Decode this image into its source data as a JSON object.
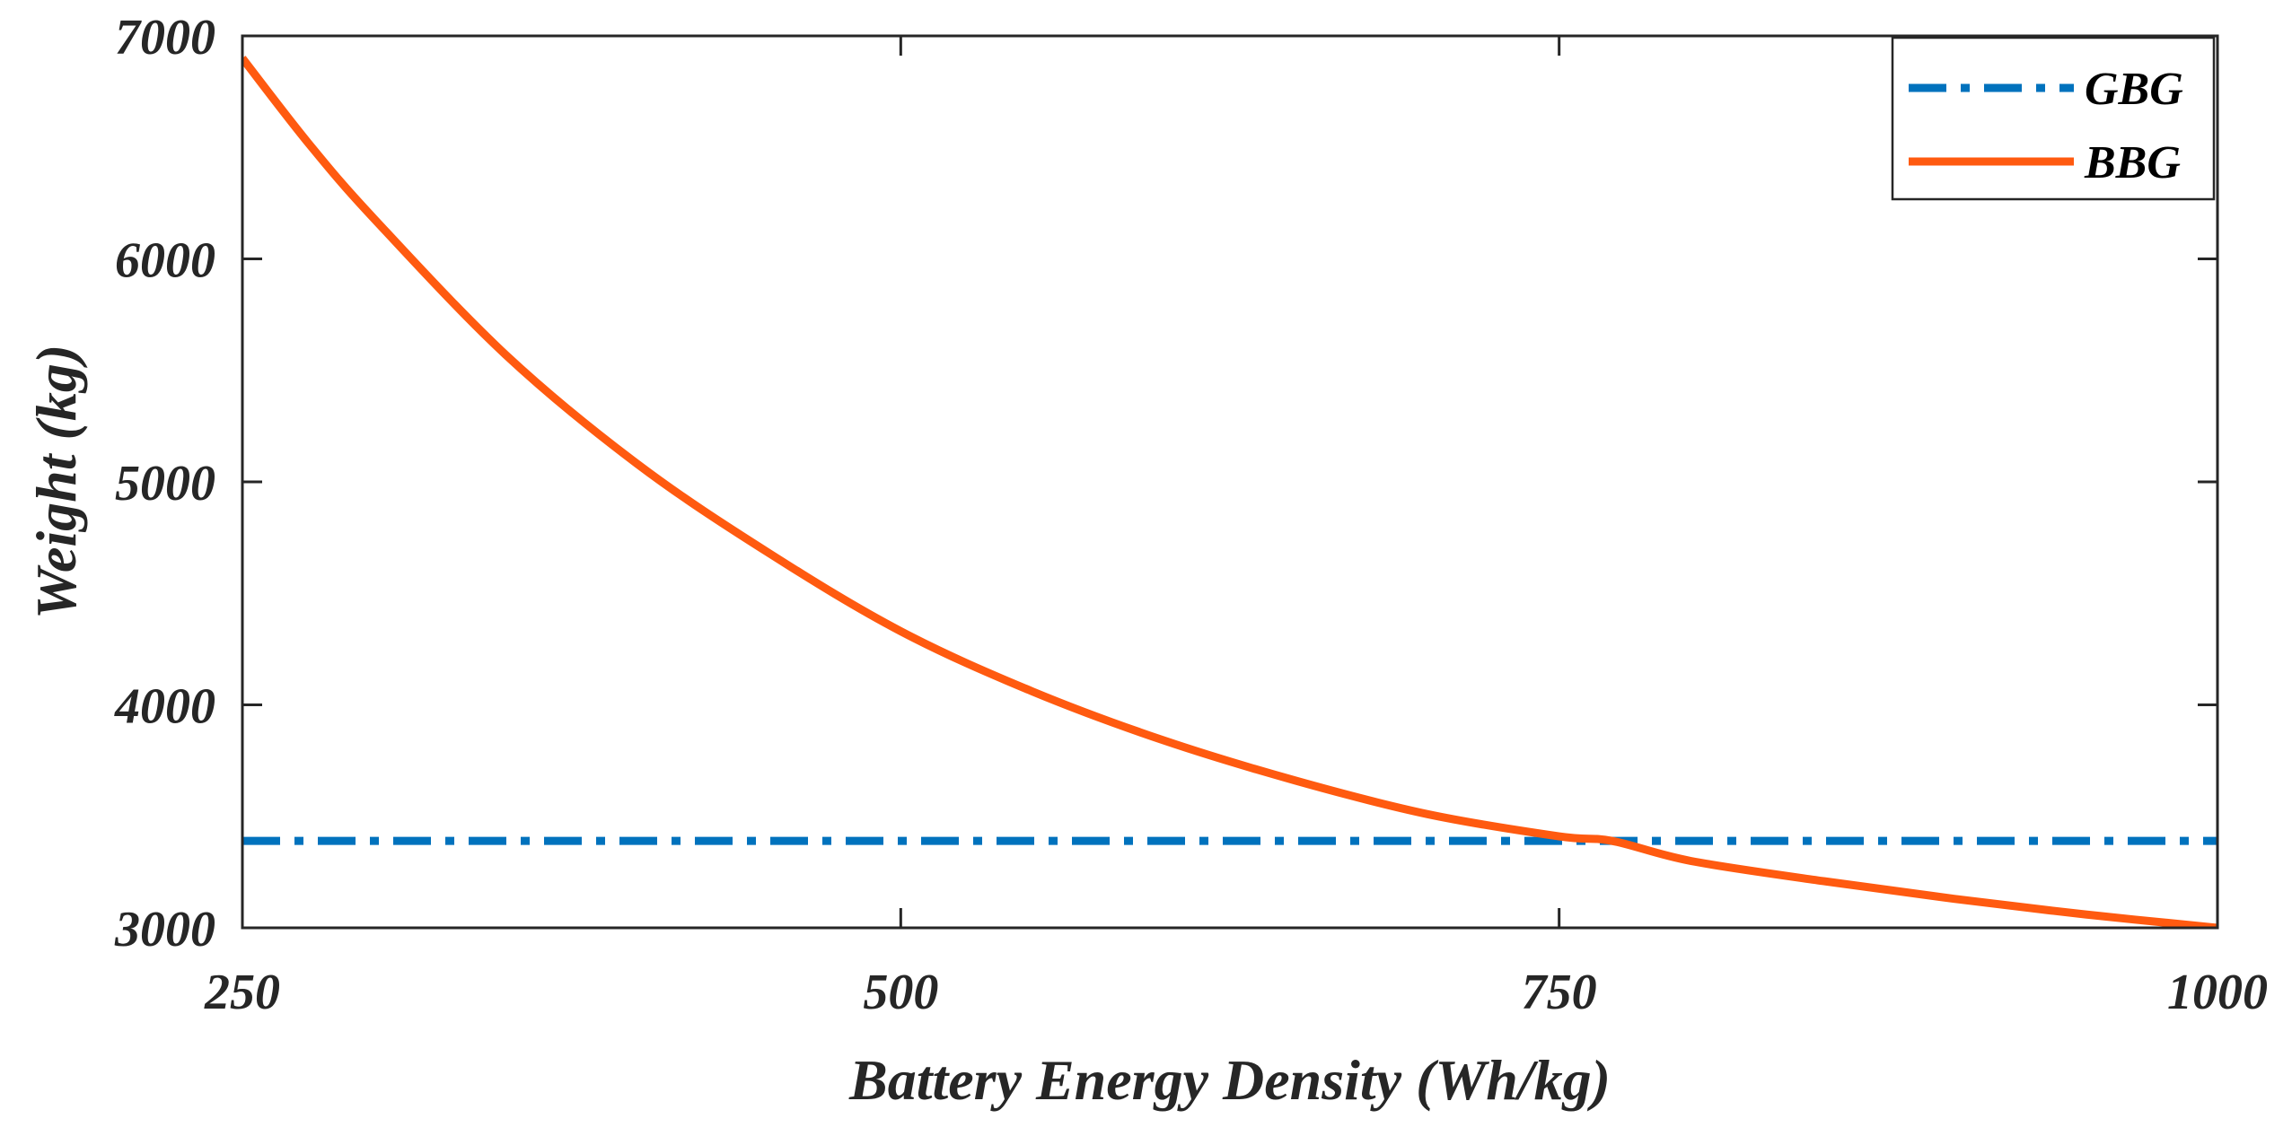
{
  "chart_data": {
    "type": "line",
    "title": "",
    "xlabel": "Battery Energy Density (Wh/kg)",
    "ylabel": "Weight (kg)",
    "xlim": [
      250,
      1000
    ],
    "ylim": [
      3000,
      7000
    ],
    "xticks": [
      250,
      500,
      750,
      1000
    ],
    "yticks": [
      3000,
      4000,
      5000,
      6000,
      7000
    ],
    "grid": false,
    "legend_position": "top-right",
    "series": [
      {
        "name": "GBG",
        "color": "#0072BD",
        "style": "dash-dot",
        "x": [
          250,
          1000
        ],
        "y": [
          3390,
          3390
        ]
      },
      {
        "name": "BBG",
        "color": "#FF5A10",
        "style": "solid",
        "x": [
          250,
          275,
          300,
          350,
          400,
          450,
          500,
          550,
          600,
          650,
          700,
          750,
          770,
          800,
          850,
          900,
          950,
          1000
        ],
        "y": [
          6900,
          6520,
          6180,
          5570,
          5080,
          4680,
          4330,
          4060,
          3840,
          3660,
          3510,
          3410,
          3390,
          3300,
          3210,
          3130,
          3060,
          3000
        ]
      }
    ]
  }
}
